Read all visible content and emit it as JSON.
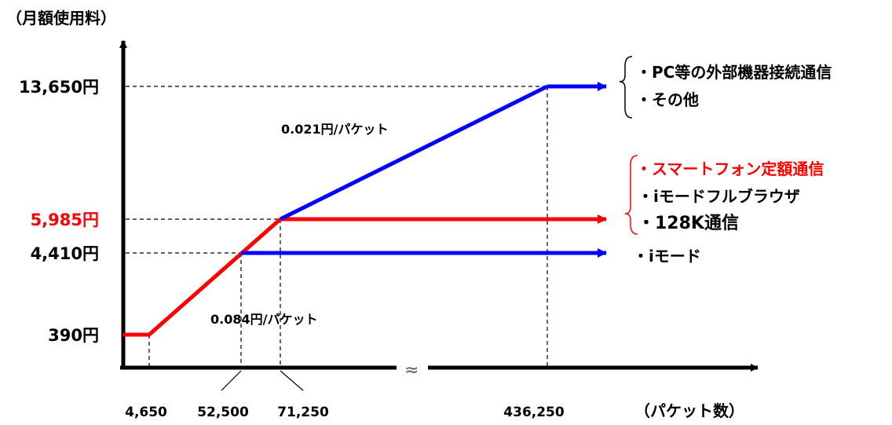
{
  "chart_data": {
    "type": "line",
    "ylabel": "（月額使用料）",
    "xlabel": "（パケット数）",
    "x_ticks": [
      "4,650",
      "52,500",
      "71,250",
      "436,250"
    ],
    "y_ticks": [
      {
        "label": "13,650円",
        "value": 13650,
        "color": "#000000"
      },
      {
        "label": "5,985円",
        "value": 5985,
        "color": "#ff0000"
      },
      {
        "label": "4,410円",
        "value": 4410,
        "color": "#000000"
      },
      {
        "label": "390円",
        "value": 390,
        "color": "#000000"
      }
    ],
    "axis_break": "≈",
    "series": [
      {
        "color": "#ff0000",
        "points": [
          {
            "x": 0,
            "y": 390
          },
          {
            "x": 4650,
            "y": 390
          },
          {
            "x": 71250,
            "y": 5985
          },
          {
            "x": 71250,
            "y": 5985
          }
        ],
        "arrow": true
      },
      {
        "color": "#0000ff",
        "points": [
          {
            "x": 52500,
            "y": 4410
          }
        ],
        "arrow": true
      },
      {
        "color": "#0000ff",
        "points": [
          {
            "x": 71250,
            "y": 5985
          },
          {
            "x": 436250,
            "y": 13650
          }
        ],
        "arrow": true
      }
    ],
    "annotations": {
      "rate_high": "0.084円/パケット",
      "rate_low": "0.021円/パケット"
    },
    "legend_groups": [
      {
        "items": [
          {
            "text": "・PC等の外部機器接続通信",
            "color": "#000000"
          },
          {
            "text": "・その他",
            "color": "#000000"
          }
        ]
      },
      {
        "bracket_color": "#ff0000",
        "items": [
          {
            "text": "・スマートフォン定額通信",
            "color": "#ff0000"
          },
          {
            "text": "・iモードフルブラウザ",
            "color": "#000000"
          },
          {
            "text": "・128K通信",
            "color": "#000000"
          }
        ]
      },
      {
        "items": [
          {
            "text": "・iモード",
            "color": "#000000"
          }
        ]
      }
    ]
  }
}
